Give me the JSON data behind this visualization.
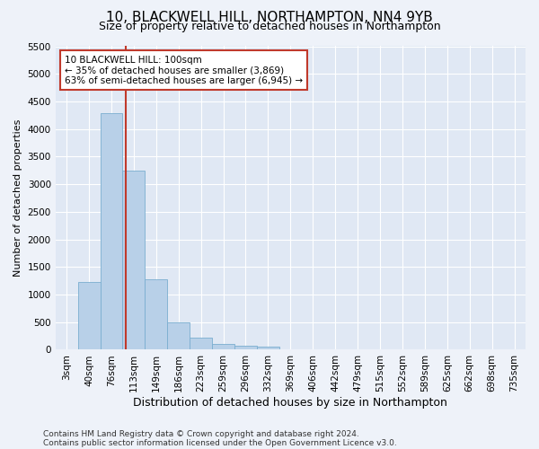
{
  "title": "10, BLACKWELL HILL, NORTHAMPTON, NN4 9YB",
  "subtitle": "Size of property relative to detached houses in Northampton",
  "xlabel": "Distribution of detached houses by size in Northampton",
  "ylabel": "Number of detached properties",
  "categories": [
    "3sqm",
    "40sqm",
    "76sqm",
    "113sqm",
    "149sqm",
    "186sqm",
    "223sqm",
    "259sqm",
    "296sqm",
    "332sqm",
    "369sqm",
    "406sqm",
    "442sqm",
    "479sqm",
    "515sqm",
    "552sqm",
    "589sqm",
    "625sqm",
    "662sqm",
    "698sqm",
    "735sqm"
  ],
  "values": [
    0,
    1230,
    4280,
    3250,
    1270,
    490,
    215,
    100,
    65,
    55,
    0,
    0,
    0,
    0,
    0,
    0,
    0,
    0,
    0,
    0,
    0
  ],
  "bar_color": "#b8d0e8",
  "bar_edge_color": "#7aaed0",
  "vline_color": "#c0392b",
  "annotation_text": "10 BLACKWELL HILL: 100sqm\n← 35% of detached houses are smaller (3,869)\n63% of semi-detached houses are larger (6,945) →",
  "annotation_box_color": "white",
  "annotation_box_edge_color": "#c0392b",
  "ylim": [
    0,
    5500
  ],
  "yticks": [
    0,
    500,
    1000,
    1500,
    2000,
    2500,
    3000,
    3500,
    4000,
    4500,
    5000,
    5500
  ],
  "footer_line1": "Contains HM Land Registry data © Crown copyright and database right 2024.",
  "footer_line2": "Contains public sector information licensed under the Open Government Licence v3.0.",
  "bg_color": "#eef2f9",
  "plot_bg_color": "#e0e8f4",
  "grid_color": "white",
  "title_fontsize": 11,
  "subtitle_fontsize": 9,
  "xlabel_fontsize": 9,
  "ylabel_fontsize": 8,
  "tick_fontsize": 7.5,
  "annotation_fontsize": 7.5,
  "footer_fontsize": 6.5
}
